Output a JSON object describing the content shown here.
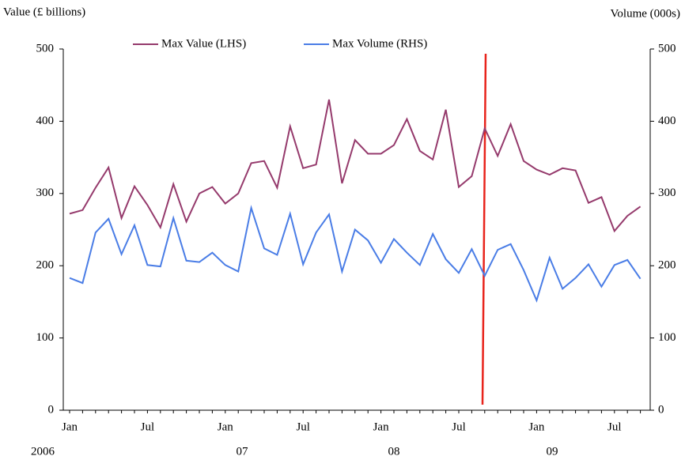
{
  "chart_data": {
    "type": "line",
    "y_label": "Value (£ billions)",
    "y2_label": "Volume (000s)",
    "categories": [
      "Jan",
      null,
      null,
      null,
      null,
      null,
      "Jul",
      null,
      null,
      null,
      null,
      null,
      "Jan",
      null,
      null,
      null,
      null,
      null,
      "Jul",
      null,
      null,
      null,
      null,
      null,
      "Jan",
      null,
      null,
      null,
      null,
      null,
      "Jul",
      null,
      null,
      null,
      null,
      null,
      "Jan",
      null,
      null,
      null,
      null,
      null,
      "Jul",
      null,
      null
    ],
    "year_labels": [
      "2006",
      "07",
      "08",
      "09"
    ],
    "series": [
      {
        "name": "Max Value (LHS)",
        "color": "#953a6c",
        "values": [
          272,
          277,
          308,
          336,
          266,
          310,
          284,
          253,
          313,
          261,
          300,
          309,
          286,
          300,
          342,
          345,
          308,
          393,
          335,
          340,
          430,
          314,
          374,
          355,
          355,
          367,
          403,
          359,
          347,
          416,
          309,
          324,
          390,
          352,
          396,
          345,
          333,
          326,
          335,
          332,
          287,
          295,
          248,
          269,
          282
        ]
      },
      {
        "name": "Max Volume (RHS)",
        "color": "#4a7de6",
        "axis": "y2",
        "values": [
          183,
          176,
          246,
          265,
          216,
          256,
          201,
          199,
          266,
          207,
          205,
          218,
          201,
          192,
          280,
          224,
          215,
          272,
          202,
          246,
          271,
          192,
          250,
          235,
          204,
          237,
          218,
          201,
          244,
          209,
          190,
          223,
          186,
          222,
          230,
          194,
          152,
          211,
          168,
          183,
          202,
          171,
          201,
          208,
          182
        ]
      }
    ],
    "ylim": [
      0,
      500
    ],
    "yticks": [
      0,
      100,
      200,
      300,
      400,
      500
    ],
    "y2lim": [
      0,
      500
    ],
    "y2ticks": [
      0,
      100,
      200,
      300,
      400,
      500
    ],
    "legend": "top"
  }
}
